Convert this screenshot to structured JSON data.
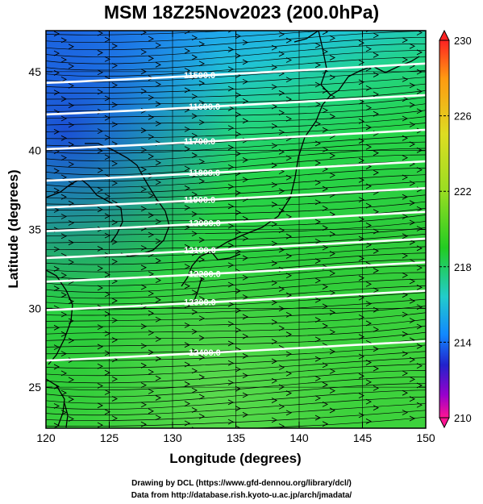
{
  "title": "MSM 18Z25Nov2023 (200.0hPa)",
  "x_axis": {
    "label": "Longitude (degrees)",
    "range": [
      120,
      150
    ],
    "ticks": [
      "120",
      "125",
      "130",
      "135",
      "140",
      "145",
      "150"
    ]
  },
  "y_axis": {
    "label": "Latitude (degrees)",
    "range": [
      22.4,
      47.6
    ],
    "ticks": [
      "25",
      "30",
      "35",
      "40",
      "45"
    ]
  },
  "colorbar": {
    "range": [
      210,
      230
    ],
    "labels": [
      "230",
      "226",
      "222",
      "218",
      "214",
      "210"
    ],
    "colors": [
      "#ff1493",
      "#9900cc",
      "#2222cc",
      "#1188ff",
      "#22cccc",
      "#22dd44",
      "#22cc22",
      "#99dd22",
      "#dddd22",
      "#ff9911",
      "#ff2222"
    ]
  },
  "contours": [
    {
      "label": "11500.0",
      "lat": 44.8
    },
    {
      "label": "11600.0",
      "lat": 42.8
    },
    {
      "label": "11700.0",
      "lat": 40.6
    },
    {
      "label": "11800.0",
      "lat": 38.6
    },
    {
      "label": "11900.0",
      "lat": 36.9
    },
    {
      "label": "12000.0",
      "lat": 35.4
    },
    {
      "label": "12100.0",
      "lat": 33.7
    },
    {
      "label": "12200.0",
      "lat": 32.2
    },
    {
      "label": "12300.0",
      "lat": 30.4
    },
    {
      "label": "12400.0",
      "lat": 27.2
    }
  ],
  "credits": {
    "line1": "Drawing by DCL (https://www.gfd-dennou.org/library/dcl/)",
    "line2": "Data from http://database.rish.kyoto-u.ac.jp/arch/jmadata/"
  }
}
